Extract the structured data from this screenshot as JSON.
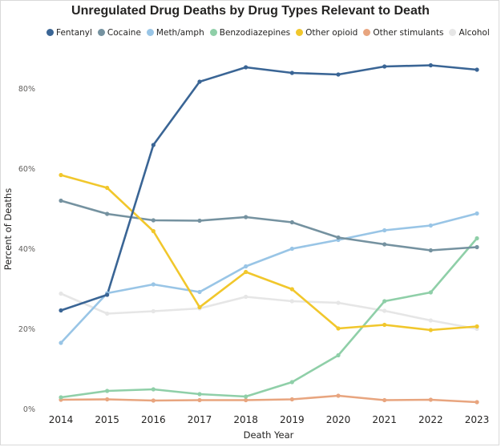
{
  "chart_data": {
    "type": "line",
    "title": "Unregulated Drug Deaths by Drug Types Relevant to Death",
    "xlabel": "Death Year",
    "ylabel": "Percent of Deaths",
    "x": [
      "2014",
      "2015",
      "2016",
      "2017",
      "2018",
      "2019",
      "2020",
      "2021",
      "2022",
      "2023"
    ],
    "ylim": [
      0,
      90
    ],
    "yticks": [
      0,
      20,
      40,
      60,
      80
    ],
    "ytick_labels": [
      "0%",
      "20%",
      "40%",
      "60%",
      "80%"
    ],
    "legend_position": "top",
    "grid": false,
    "series": [
      {
        "name": "Fentanyl",
        "color": "#3a6595",
        "values": [
          24.7,
          28.6,
          66.0,
          81.8,
          85.4,
          84.0,
          83.6,
          85.6,
          85.9,
          84.8
        ]
      },
      {
        "name": "Cocaine",
        "color": "#7592a0",
        "values": [
          52.1,
          48.8,
          47.2,
          47.1,
          48.0,
          46.7,
          42.9,
          41.2,
          39.7,
          40.5
        ]
      },
      {
        "name": "Meth/amph",
        "color": "#99c5e6",
        "values": [
          16.6,
          29.0,
          31.2,
          29.3,
          35.7,
          40.1,
          42.3,
          44.7,
          45.9,
          48.9
        ]
      },
      {
        "name": "Benzodiazepines",
        "color": "#8fcfa8",
        "values": [
          3.0,
          4.6,
          5.0,
          3.8,
          3.2,
          6.8,
          13.5,
          27.0,
          29.2,
          42.7
        ]
      },
      {
        "name": "Other opioid",
        "color": "#f1c72c",
        "values": [
          58.5,
          55.3,
          44.5,
          25.5,
          34.3,
          30.0,
          20.2,
          21.1,
          19.8,
          20.7
        ]
      },
      {
        "name": "Other stimulants",
        "color": "#e8a57f",
        "values": [
          2.4,
          2.5,
          2.2,
          2.3,
          2.3,
          2.5,
          3.4,
          2.3,
          2.4,
          1.8
        ]
      },
      {
        "name": "Alcohol",
        "color": "#e6e6e6",
        "values": [
          28.9,
          23.9,
          24.5,
          25.2,
          28.1,
          27.0,
          26.6,
          24.6,
          22.2,
          20.1
        ]
      }
    ]
  }
}
